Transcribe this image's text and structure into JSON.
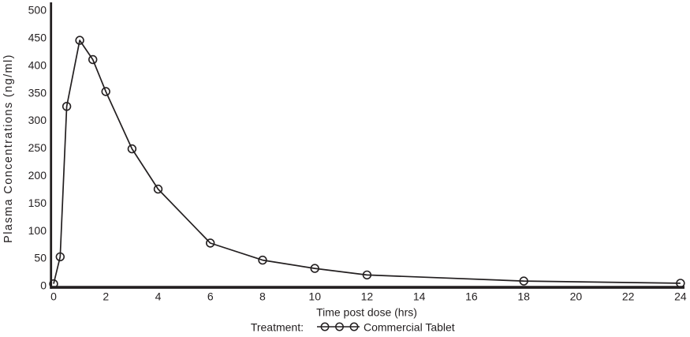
{
  "figure": {
    "background": "#ffffff",
    "ink_color": "#231f20",
    "marker_fill": "none"
  },
  "chart_data": {
    "type": "line",
    "title": "",
    "xlabel": "Time post dose (hrs)",
    "ylabel": "Plasma Concentrations (ng/ml)",
    "xlim": [
      0,
      24
    ],
    "ylim": [
      0,
      500
    ],
    "x_ticks": [
      0,
      2,
      4,
      6,
      8,
      10,
      12,
      14,
      16,
      18,
      20,
      22,
      24
    ],
    "y_ticks": [
      0,
      50,
      100,
      150,
      200,
      250,
      300,
      350,
      400,
      450,
      500
    ],
    "grid": false,
    "legend": {
      "position": "bottom-center",
      "prefix_label": "Treatment:",
      "entries": [
        {
          "label": "Commercial Tablet",
          "marker": "open-circle",
          "line_through_marker": true
        }
      ]
    },
    "series": [
      {
        "name": "Commercial Tablet",
        "marker": "open-circle",
        "color": "#231f20",
        "x": [
          0,
          0.25,
          0.5,
          1,
          1.5,
          2,
          3,
          4,
          6,
          8,
          10,
          12,
          18,
          24
        ],
        "y": [
          3,
          52,
          325,
          445,
          410,
          352,
          248,
          175,
          77,
          46,
          31,
          19,
          8,
          4
        ]
      }
    ]
  }
}
